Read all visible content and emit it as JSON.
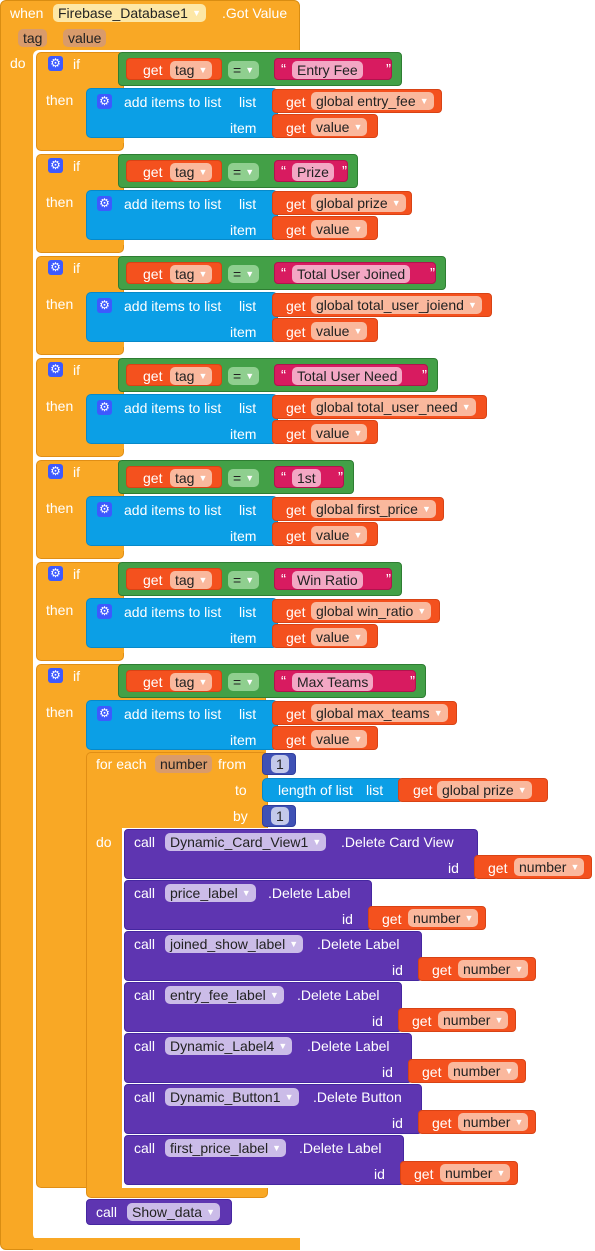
{
  "event": {
    "when": "when",
    "component": "Firebase_Database1",
    "event_name": ".Got Value",
    "params": [
      "tag",
      "value"
    ],
    "do": "do"
  },
  "kw": {
    "if": "if",
    "then": "then",
    "do": "do",
    "get": "get",
    "eq": "=",
    "add_items": "add items to list",
    "list": "list",
    "item": "item",
    "call": "call",
    "id": "id",
    "for_each": "for each",
    "from": "from",
    "to": "to",
    "by": "by",
    "length_of_list": "length of list"
  },
  "tag_var": "tag",
  "value_var": "value",
  "blocks": [
    {
      "text": "Entry Fee",
      "list_var": "global entry_fee"
    },
    {
      "text": "Prize",
      "list_var": "global prize"
    },
    {
      "text": "Total User Joined",
      "list_var": "global total_user_joiend"
    },
    {
      "text": "Total User Need",
      "list_var": "global total_user_need"
    },
    {
      "text": "1st",
      "list_var": "global first_price"
    },
    {
      "text": "Win Ratio",
      "list_var": "global win_ratio"
    },
    {
      "text": "Max Teams",
      "list_var": "global max_teams"
    }
  ],
  "loop": {
    "var": "number",
    "from": "1",
    "list_var": "global prize",
    "by": "1"
  },
  "calls": [
    {
      "component": "Dynamic_Card_View1",
      "method": ".Delete Card View"
    },
    {
      "component": "price_label",
      "method": ".Delete Label"
    },
    {
      "component": "joined_show_label",
      "method": ".Delete Label"
    },
    {
      "component": "entry_fee_label",
      "method": ".Delete Label"
    },
    {
      "component": "Dynamic_Label4",
      "method": ".Delete Label"
    },
    {
      "component": "Dynamic_Button1",
      "method": ".Delete Button"
    },
    {
      "component": "first_price_label",
      "method": ".Delete Label"
    }
  ],
  "final_call": {
    "component": "Show_data"
  },
  "colors": {
    "event": "#f9a825",
    "logic": "#43a047",
    "list": "#0b9fe6",
    "variable": "#f4511e",
    "text": "#d81b60",
    "component": "#5e35b1",
    "number": "#3f51b5"
  }
}
